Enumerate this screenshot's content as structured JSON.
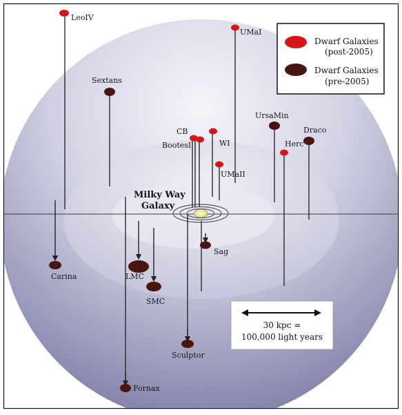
{
  "legend": {
    "post_label_1": "Dwarf Galaxies",
    "post_label_2": "(post-2005)",
    "pre_label_1": "Dwarf Galaxies",
    "pre_label_2": "(pre-2005)"
  },
  "center": {
    "line1": "Milky Way",
    "line2": "Galaxy"
  },
  "scale": {
    "line1": "30 kpc =",
    "line2": "100,000 light years"
  },
  "colors": {
    "post": "#d61616",
    "pre": "#4a1410",
    "sphere_light": "#f3f3f8",
    "sphere_dark": "#8c8cb0"
  },
  "galaxies": [
    {
      "name": "LeoIV",
      "type": "post"
    },
    {
      "name": "UMaI",
      "type": "post"
    },
    {
      "name": "Sextans",
      "type": "pre"
    },
    {
      "name": "CB",
      "type": "post"
    },
    {
      "name": "BootesI",
      "type": "post"
    },
    {
      "name": "WI",
      "type": "post"
    },
    {
      "name": "UMaII",
      "type": "post"
    },
    {
      "name": "UrsaMin",
      "type": "pre"
    },
    {
      "name": "Draco",
      "type": "pre"
    },
    {
      "name": "Herc",
      "type": "post"
    },
    {
      "name": "Sag",
      "type": "pre"
    },
    {
      "name": "Carina",
      "type": "pre"
    },
    {
      "name": "LMC",
      "type": "pre"
    },
    {
      "name": "SMC",
      "type": "pre"
    },
    {
      "name": "Sculptor",
      "type": "pre"
    },
    {
      "name": "Fornax",
      "type": "pre"
    }
  ]
}
